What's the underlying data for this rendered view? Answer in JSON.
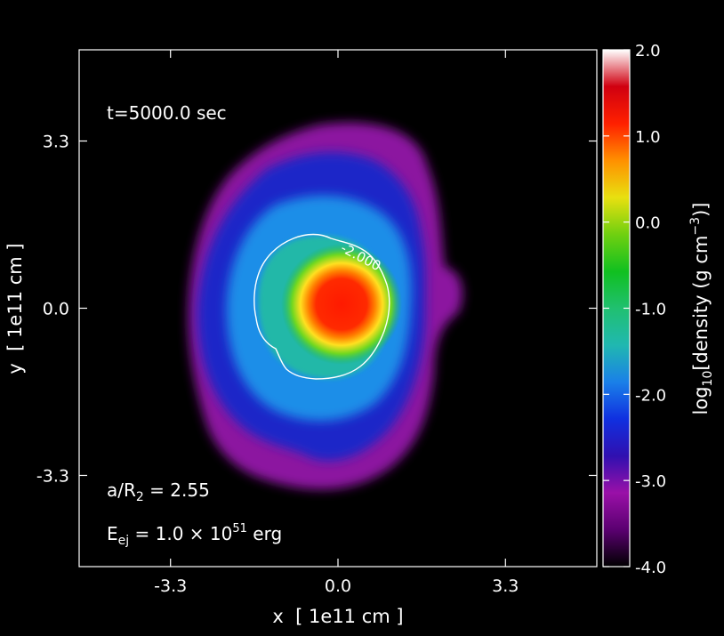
{
  "chart_data": {
    "type": "heatmap",
    "title": "",
    "xlabel": "x  [ 1e11 cm ]",
    "ylabel": "y  [ 1e11 cm ]",
    "xlim": [
      -5.1,
      5.1
    ],
    "ylim": [
      -5.1,
      5.1
    ],
    "x_ticks": [
      -3.3,
      0.0,
      3.3
    ],
    "y_ticks": [
      -3.3,
      0.0,
      3.3
    ],
    "x_tick_labels": [
      "-3.3",
      "0.0",
      "3.3"
    ],
    "y_tick_labels": [
      "-3.3",
      "0.0",
      "3.3"
    ],
    "grid": false,
    "colorbar": {
      "label_prefix": "log",
      "label_sub": "10",
      "label_main": "[density (g cm",
      "label_sup": "−3",
      "label_end": ")]",
      "range": [
        -4.0,
        2.0
      ],
      "ticks": [
        2.0,
        1.0,
        0.0,
        -1.0,
        -2.0,
        -3.0,
        -4.0
      ],
      "tick_labels": [
        "2.0",
        "1.0",
        "0.0",
        "-1.0",
        "-2.0",
        "-3.0",
        "-4.0"
      ],
      "colors": [
        "#000000",
        "#5a0070",
        "#9a10a8",
        "#3010b0",
        "#1030e0",
        "#1a80e8",
        "#20b8b0",
        "#20c070",
        "#10c020",
        "#70d010",
        "#e8e010",
        "#ff9000",
        "#ff2000",
        "#d00010",
        "#ffffff"
      ]
    },
    "contour": {
      "level_label": "-2.000",
      "level": -2.0
    },
    "annotations": {
      "time": "t=5000.0 sec",
      "ratio_main": "a/R",
      "ratio_sub": "2",
      "ratio_value": " = 2.55",
      "energy_main": "E",
      "energy_sub": "ej",
      "energy_value": " = 1.0 × 10",
      "energy_sup": "51",
      "energy_unit": " erg"
    }
  }
}
